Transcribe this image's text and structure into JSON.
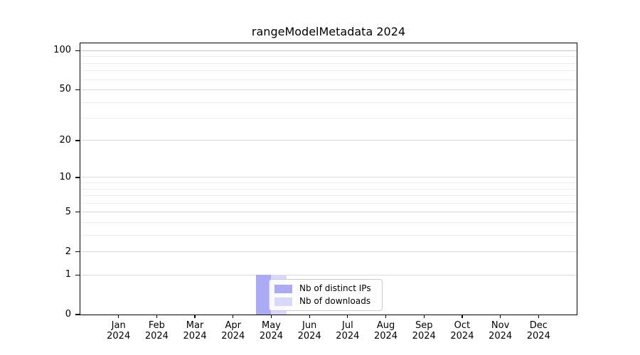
{
  "figure": {
    "title": "rangeModelMetadata 2024"
  },
  "chart_data": {
    "type": "bar",
    "title": "rangeModelMetadata 2024",
    "x": {
      "months": [
        "Jan",
        "Feb",
        "Mar",
        "Apr",
        "May",
        "Jun",
        "Jul",
        "Aug",
        "Sep",
        "Oct",
        "Nov",
        "Dec"
      ],
      "year": "2024"
    },
    "series": [
      {
        "name": "Nb of distinct IPs",
        "color": "#aaaaf5",
        "values": [
          0,
          0,
          0,
          0,
          1,
          0,
          0,
          0,
          0,
          0,
          0,
          0
        ]
      },
      {
        "name": "Nb of downloads",
        "color": "#d8d8fa",
        "values": [
          0,
          0,
          0,
          0,
          1,
          0,
          0,
          0,
          0,
          0,
          0,
          0
        ]
      }
    ],
    "y_axis": {
      "scale": "log1p",
      "ticks": [
        0,
        1,
        2,
        5,
        10,
        20,
        50,
        100
      ],
      "minor_gridlines": [
        3,
        4,
        6,
        7,
        8,
        9,
        30,
        40,
        60,
        70,
        80,
        90
      ],
      "max_value": 113
    },
    "legend": {
      "entries": [
        "Nb of distinct IPs",
        "Nb of downloads"
      ],
      "position": "lower center"
    },
    "grid": true
  },
  "colors": {
    "bar_distinct_ips": "#aaaaf5",
    "bar_downloads": "#d8d8fa",
    "grid_major": "#d9d9d9",
    "grid_minor": "#ededed",
    "grid_top": "#c6c6c6",
    "axis": "#000000",
    "legend_border": "#cccccc",
    "background": "#ffffff"
  }
}
